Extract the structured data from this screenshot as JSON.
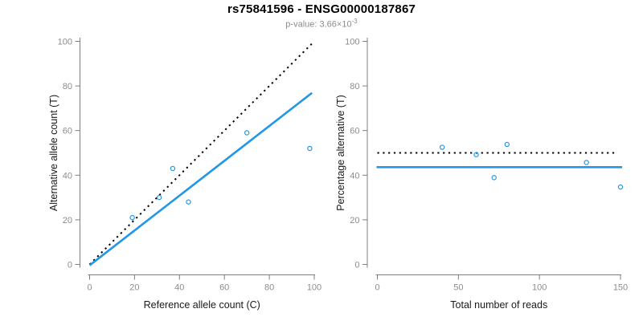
{
  "header": {
    "title": "rs75841596 - ENSG00000187867",
    "subtitle_text": "p-value: 3.66×10",
    "subtitle_exponent": "-3"
  },
  "colors": {
    "accent_blue": "#2297E6",
    "dotted_black": "#000000",
    "axis_gray": "#7f7f7f",
    "tick_label_gray": "#8c8c8c",
    "axis_title_black": "#1a1a1a"
  },
  "chart_data": [
    {
      "type": "scatter",
      "name": "allele-counts-panel",
      "title": "",
      "xlabel": "Reference allele count (C)",
      "ylabel": "Alternative allele count (T)",
      "xlim": [
        0,
        100
      ],
      "ylim": [
        0,
        100
      ],
      "xticks": [
        0,
        20,
        40,
        60,
        80,
        100
      ],
      "yticks": [
        0,
        20,
        40,
        60,
        80,
        100
      ],
      "grid": false,
      "legend": "none",
      "points": [
        [
          19,
          21
        ],
        [
          31,
          30
        ],
        [
          37,
          43
        ],
        [
          44,
          28
        ],
        [
          70,
          59
        ],
        [
          98,
          52
        ]
      ],
      "lines": [
        {
          "name": "identity-line",
          "style": "dotted",
          "color_key": "dotted_black",
          "from": [
            0,
            0
          ],
          "to": [
            100,
            100
          ]
        },
        {
          "name": "regression-line",
          "style": "solid",
          "color_key": "accent_blue",
          "from": [
            0,
            -0.4
          ],
          "to": [
            99,
            76.9
          ]
        }
      ]
    },
    {
      "type": "scatter",
      "name": "percentage-panel",
      "title": "",
      "xlabel": "Total number of reads",
      "ylabel": "Percentage alternative (T)",
      "xlim": [
        0,
        150
      ],
      "ylim": [
        0,
        100
      ],
      "xticks": [
        0,
        50,
        100,
        150
      ],
      "yticks": [
        0,
        20,
        40,
        60,
        80,
        100
      ],
      "grid": false,
      "legend": "none",
      "points": [
        [
          40,
          52.5
        ],
        [
          61,
          49.2
        ],
        [
          72,
          38.9
        ],
        [
          80,
          53.8
        ],
        [
          129,
          45.7
        ],
        [
          150,
          34.7
        ]
      ],
      "lines": [
        {
          "name": "expected-50-percent-line",
          "style": "dotted",
          "color_key": "dotted_black",
          "from": [
            0,
            50
          ],
          "to": [
            147,
            50
          ]
        },
        {
          "name": "mean-percentage-line",
          "style": "solid",
          "color_key": "accent_blue",
          "from": [
            -0.5,
            43.6
          ],
          "to": [
            151,
            43.6
          ]
        }
      ]
    }
  ]
}
